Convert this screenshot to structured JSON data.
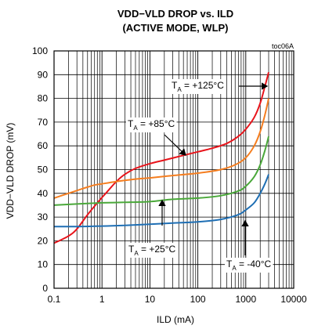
{
  "chart_data": {
    "type": "line",
    "title": "VDD−VLD DROP vs. ILD",
    "subtitle": "(ACTIVE MODE, WLP)",
    "chart_code": "toc06A",
    "xlabel": "ILD (mA)",
    "ylabel": "VDD−VLD DROP (mV)",
    "xscale": "log",
    "xlim": [
      0.1,
      10000
    ],
    "ylim": [
      0,
      100
    ],
    "x_ticks": [
      "0.1",
      "1",
      "10",
      "100",
      "1000",
      "10000"
    ],
    "y_ticks": [
      "0",
      "10",
      "20",
      "30",
      "40",
      "50",
      "60",
      "70",
      "80",
      "90",
      "100"
    ],
    "grid": true,
    "series": [
      {
        "name": "TA = +125°C",
        "color": "#e8141b",
        "points": [
          [
            0.1,
            19
          ],
          [
            0.2,
            22
          ],
          [
            0.3,
            25
          ],
          [
            0.5,
            31
          ],
          [
            0.8,
            36
          ],
          [
            1.2,
            40
          ],
          [
            2,
            45
          ],
          [
            3,
            48
          ],
          [
            5,
            50.5
          ],
          [
            10,
            52.5
          ],
          [
            20,
            54
          ],
          [
            50,
            56
          ],
          [
            100,
            57.5
          ],
          [
            200,
            59
          ],
          [
            400,
            61
          ],
          [
            700,
            64
          ],
          [
            1000,
            67
          ],
          [
            1500,
            72
          ],
          [
            2000,
            78
          ],
          [
            2500,
            85
          ],
          [
            3000,
            91
          ]
        ]
      },
      {
        "name": "TA = +85°C",
        "color": "#f57e20",
        "points": [
          [
            0.1,
            38
          ],
          [
            0.2,
            40
          ],
          [
            0.4,
            42
          ],
          [
            0.7,
            43.5
          ],
          [
            1,
            44
          ],
          [
            2,
            45
          ],
          [
            5,
            46
          ],
          [
            10,
            46.5
          ],
          [
            30,
            47.5
          ],
          [
            100,
            48.5
          ],
          [
            300,
            50
          ],
          [
            600,
            52
          ],
          [
            1000,
            55
          ],
          [
            1500,
            60
          ],
          [
            2000,
            66
          ],
          [
            2500,
            73
          ],
          [
            3000,
            80
          ]
        ]
      },
      {
        "name": "TA = +25°C",
        "color": "#4aa83a",
        "points": [
          [
            0.1,
            35
          ],
          [
            0.3,
            35.5
          ],
          [
            1,
            36
          ],
          [
            3,
            36.2
          ],
          [
            10,
            36.5
          ],
          [
            30,
            37.5
          ],
          [
            100,
            38
          ],
          [
            300,
            39
          ],
          [
            700,
            41
          ],
          [
            1000,
            43
          ],
          [
            1500,
            47
          ],
          [
            2000,
            52
          ],
          [
            2500,
            58
          ],
          [
            3000,
            64
          ]
        ]
      },
      {
        "name": "TA = -40°C",
        "color": "#1f6fb4",
        "points": [
          [
            0.1,
            26
          ],
          [
            0.3,
            26
          ],
          [
            1,
            26.2
          ],
          [
            3,
            26.5
          ],
          [
            10,
            27
          ],
          [
            30,
            27.5
          ],
          [
            100,
            28
          ],
          [
            300,
            29
          ],
          [
            700,
            31
          ],
          [
            1000,
            33
          ],
          [
            1500,
            36
          ],
          [
            2000,
            40
          ],
          [
            2500,
            44
          ],
          [
            3000,
            48
          ]
        ]
      }
    ],
    "annotations": [
      {
        "label_main": "T",
        "label_sub": "A",
        "label_rest": " = +125°C",
        "series": 0
      },
      {
        "label_main": "T",
        "label_sub": "A",
        "label_rest": " = +85°C",
        "series": 1
      },
      {
        "label_main": "T",
        "label_sub": "A",
        "label_rest": " = +25°C",
        "series": 2
      },
      {
        "label_main": "T",
        "label_sub": "A",
        "label_rest": " = -40°C",
        "series": 3
      }
    ]
  }
}
